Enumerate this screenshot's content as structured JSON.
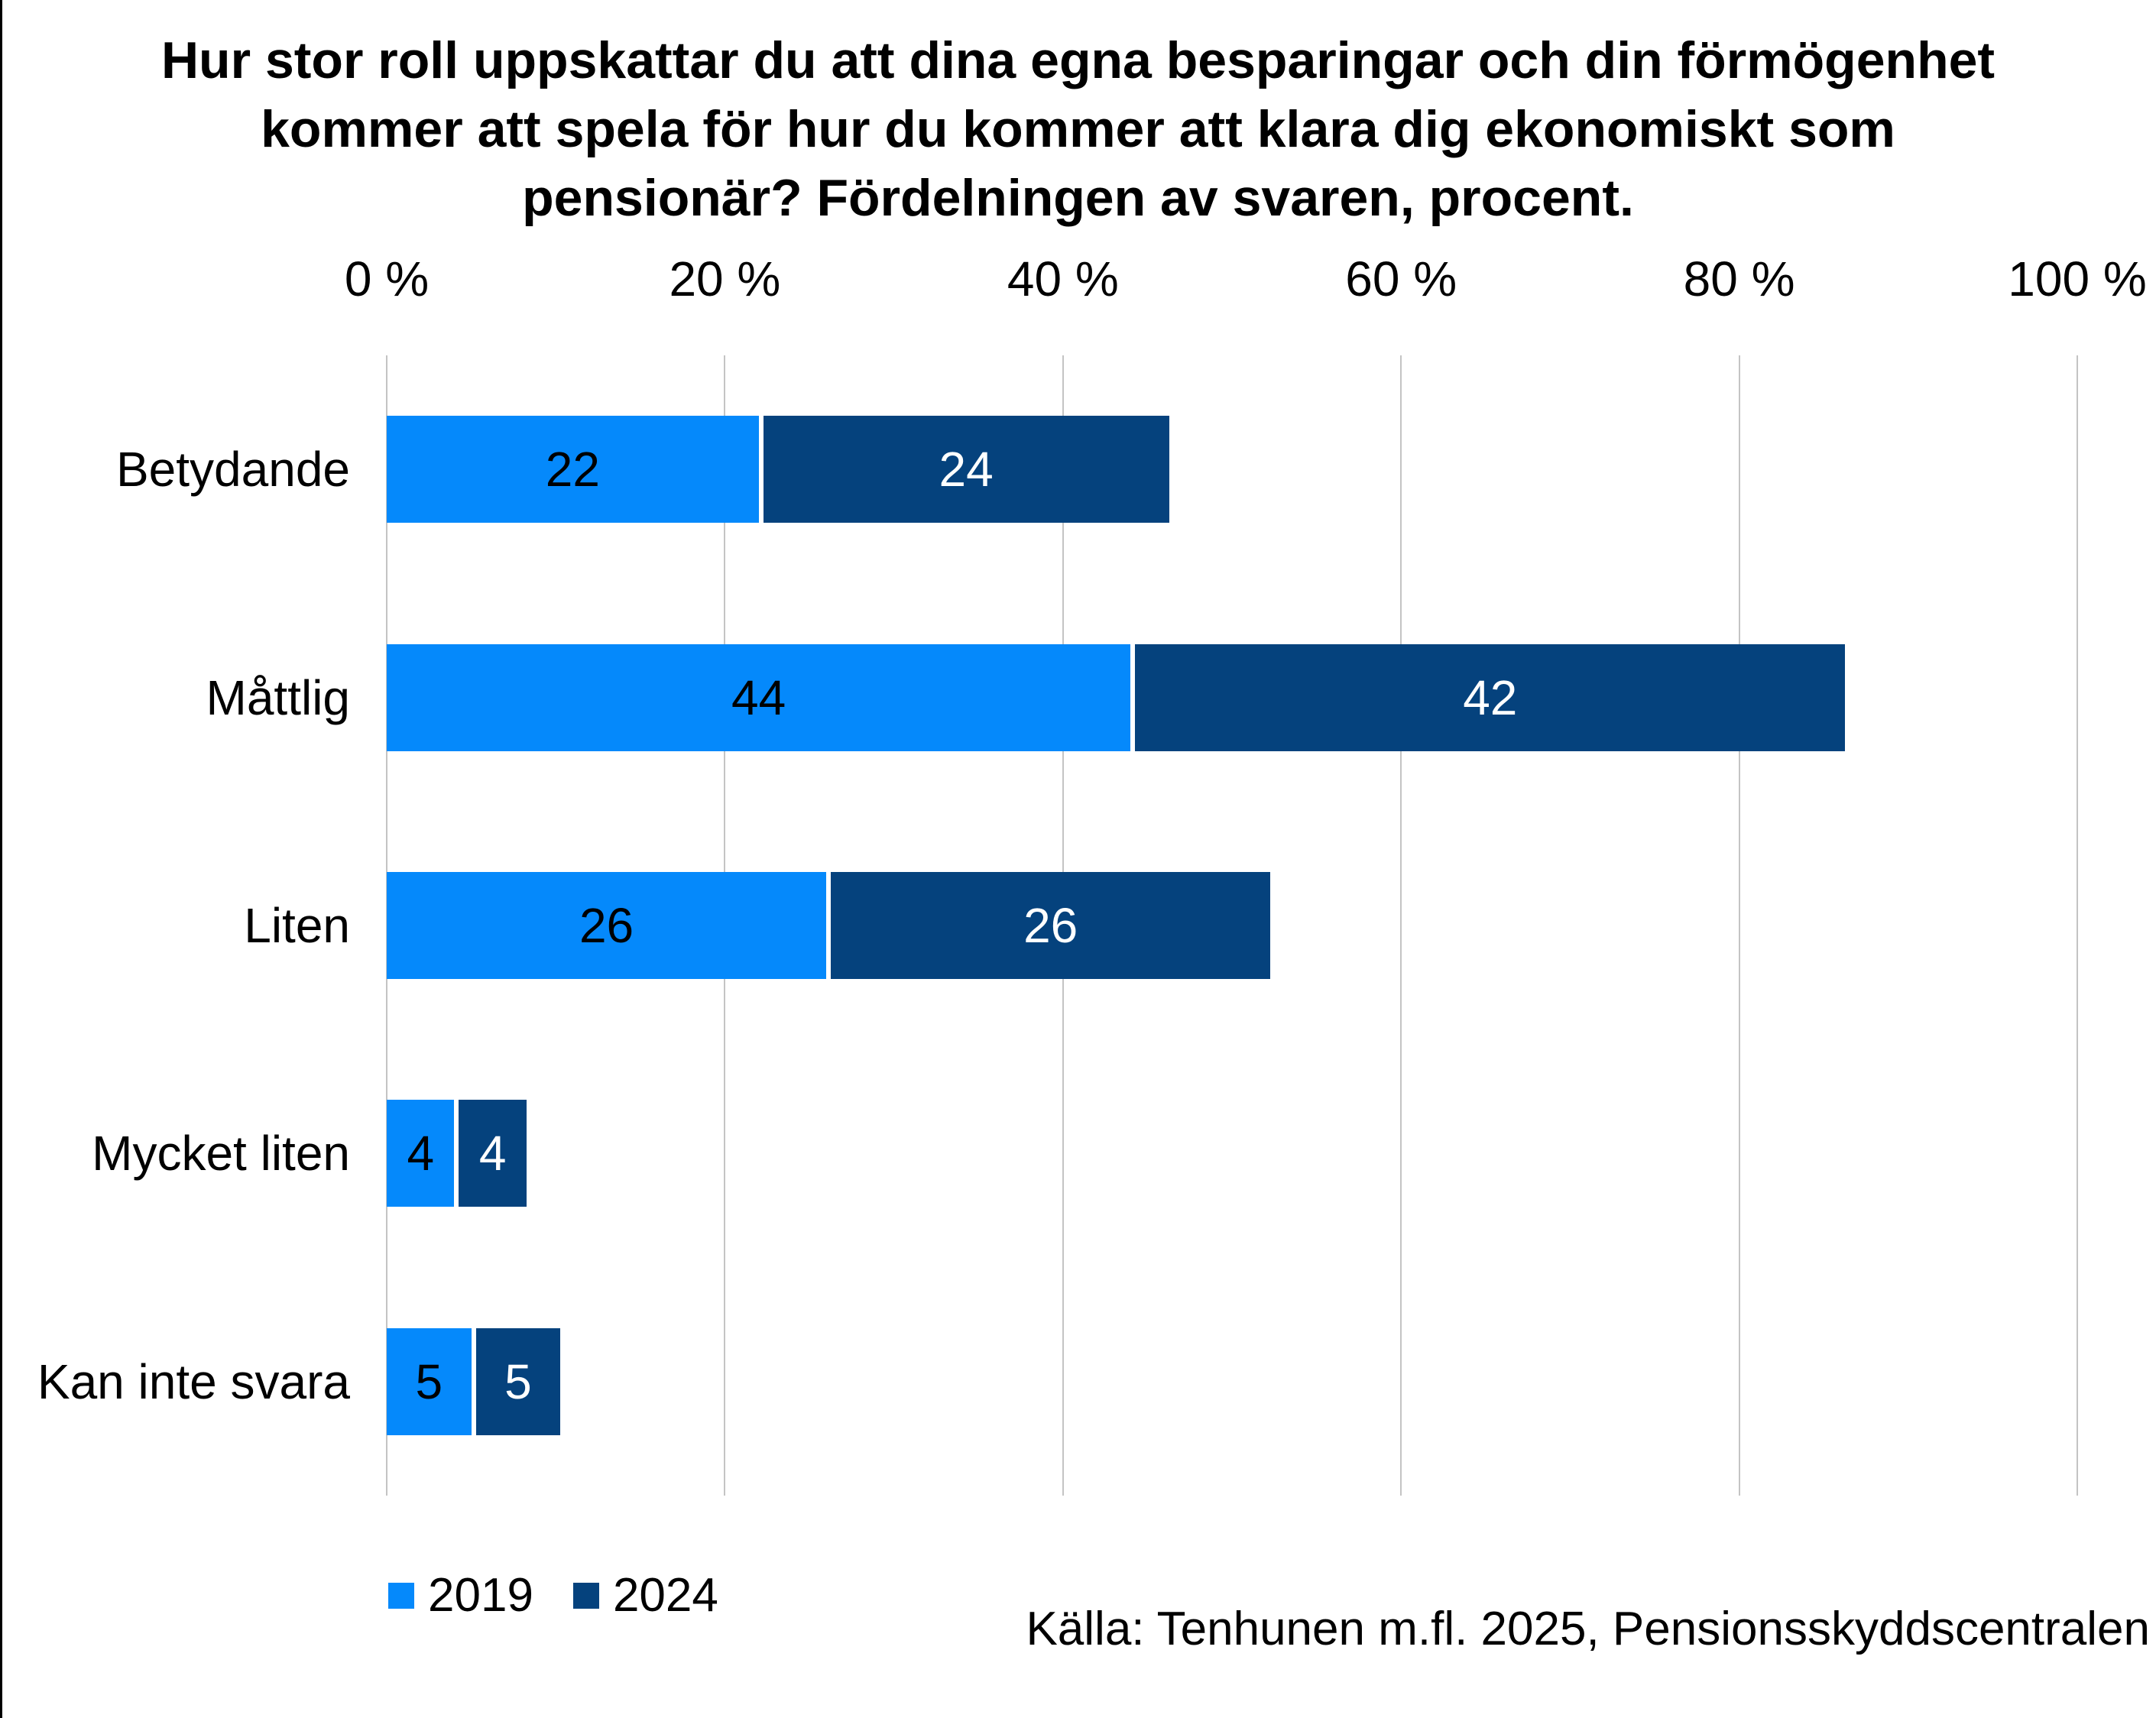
{
  "page": {
    "background": "#ffffff",
    "left_edge_line_color": "#000000"
  },
  "chart_data": {
    "type": "bar",
    "orientation": "horizontal",
    "stacked": true,
    "title": "Hur stor roll uppskattar du att dina egna besparingar och din förmögenhet kommer att spela för hur du kommer att klara dig ekonomiskt som pensionär? Fördelningen av svaren, procent.",
    "categories": [
      "Betydande",
      "Måttlig",
      "Liten",
      "Mycket liten",
      "Kan inte svara"
    ],
    "series": [
      {
        "name": "2019",
        "color": "#0589fb",
        "label_color": "#000000",
        "values": [
          22,
          44,
          26,
          4,
          5
        ]
      },
      {
        "name": "2024",
        "color": "#05427d",
        "label_color": "#ffffff",
        "values": [
          24,
          42,
          26,
          4,
          5
        ]
      }
    ],
    "x_axis": {
      "position": "top",
      "min": 0,
      "max": 100,
      "tick_values": [
        0,
        20,
        40,
        60,
        80,
        100
      ],
      "ticks": [
        "0 %",
        "20 %",
        "40 %",
        "60 %",
        "80 %",
        "100 %"
      ]
    },
    "grid": true,
    "gridline_color": "#c4c4c4",
    "legend_position": "bottom-left",
    "source": "Källa: Tenhunen m.fl. 2025, Pensionsskyddscentralen"
  }
}
